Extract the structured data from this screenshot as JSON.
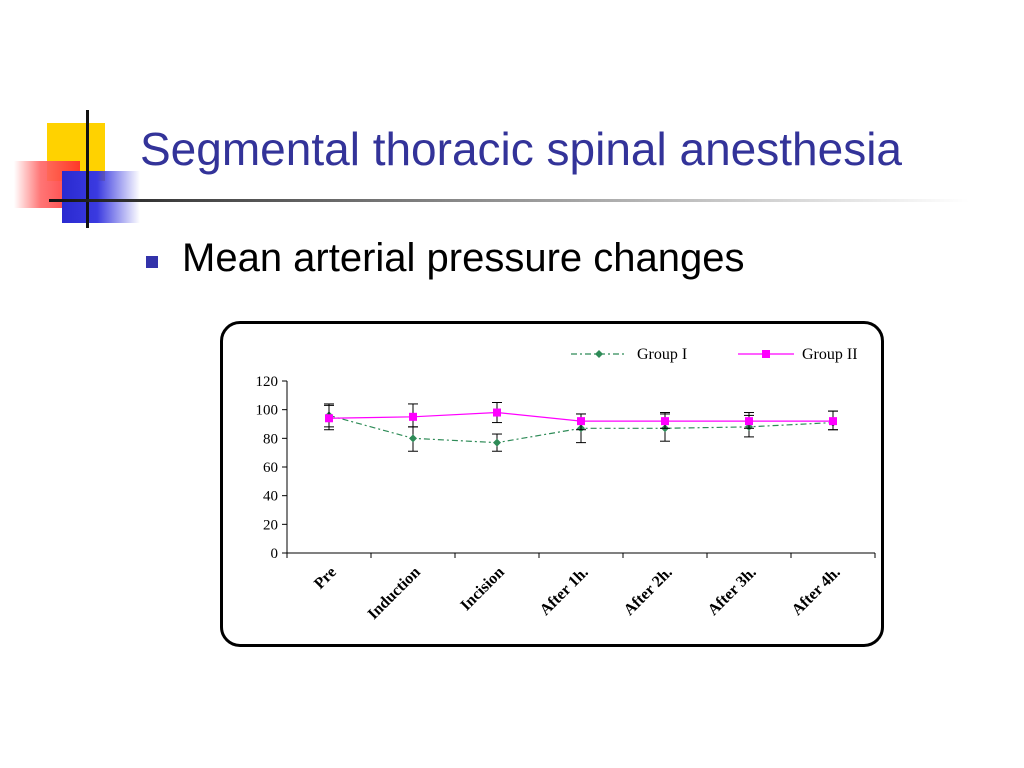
{
  "slide": {
    "title": "Segmental thoracic spinal anesthesia",
    "bullet": "Mean arterial pressure changes"
  },
  "colors": {
    "title": "#333399",
    "group1": "#2e8b57",
    "group2": "#ff00ff"
  },
  "chart_data": {
    "type": "line",
    "title": "",
    "xlabel": "",
    "ylabel": "",
    "categories": [
      "Pre",
      "Induction",
      "Incision",
      "After 1h.",
      "After 2h.",
      "After 3h.",
      "After 4h."
    ],
    "ylim": [
      0,
      120
    ],
    "yticks": [
      0,
      20,
      40,
      60,
      80,
      100,
      120
    ],
    "grid": false,
    "legend_position": "top-right",
    "series": [
      {
        "name": "Group I",
        "style": "dash-dot",
        "marker": "diamond",
        "color": "#2e8b57",
        "values": [
          96,
          80,
          77,
          87,
          87,
          88,
          91
        ],
        "err_low": [
          86,
          71,
          71,
          77,
          78,
          81,
          86
        ],
        "err_high": [
          104,
          88,
          83,
          97,
          97,
          96,
          99
        ]
      },
      {
        "name": "Group II",
        "style": "solid",
        "marker": "square",
        "color": "#ff00ff",
        "values": [
          94,
          95,
          98,
          92,
          92,
          92,
          92
        ],
        "err_low": [
          88,
          88,
          91,
          86,
          87,
          87,
          86
        ],
        "err_high": [
          103,
          104,
          105,
          97,
          98,
          98,
          99
        ]
      }
    ]
  }
}
